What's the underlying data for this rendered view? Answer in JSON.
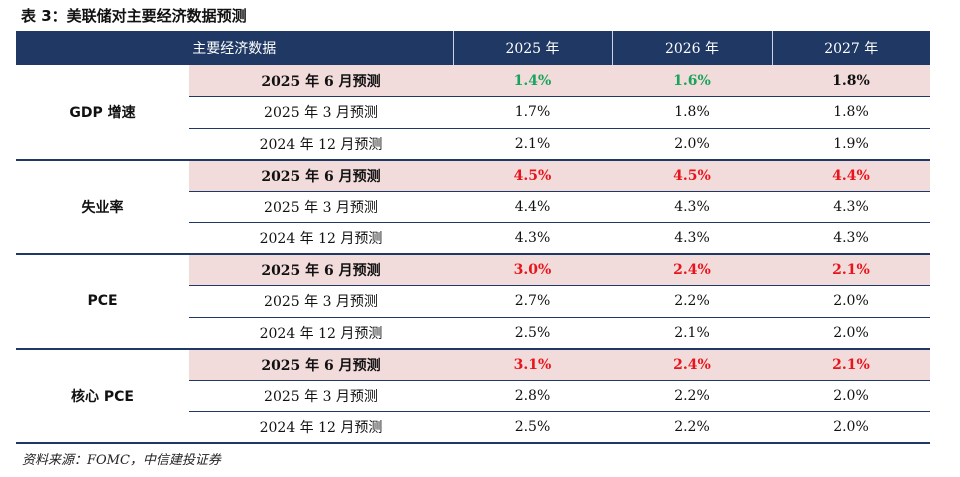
{
  "title": "表 3：美联储对主要经济数据预测",
  "header": {
    "col0": "主要经济数据",
    "col1": "2025 年",
    "col2": "2026 年",
    "col3": "2027 年"
  },
  "colors": {
    "header_bg": "#1f3864",
    "highlight_bg": "#f2dbdb",
    "green": "#1aa35b",
    "red": "#e8141b"
  },
  "groups": [
    {
      "name": "GDP 增速",
      "rows": [
        {
          "label": "2025 年 6 月预测",
          "v": [
            "1.4%",
            "1.6%",
            "1.8%"
          ],
          "colors": [
            "green",
            "green",
            "black"
          ]
        },
        {
          "label": "2025 年 3 月预测",
          "v": [
            "1.7%",
            "1.8%",
            "1.8%"
          ]
        },
        {
          "label": "2024 年 12 月预测",
          "v": [
            "2.1%",
            "2.0%",
            "1.9%"
          ]
        }
      ]
    },
    {
      "name": "失业率",
      "rows": [
        {
          "label": "2025 年 6 月预测",
          "v": [
            "4.5%",
            "4.5%",
            "4.4%"
          ],
          "colors": [
            "red",
            "red",
            "red"
          ]
        },
        {
          "label": "2025 年 3 月预测",
          "v": [
            "4.4%",
            "4.3%",
            "4.3%"
          ]
        },
        {
          "label": "2024 年 12 月预测",
          "v": [
            "4.3%",
            "4.3%",
            "4.3%"
          ]
        }
      ]
    },
    {
      "name": "PCE",
      "rows": [
        {
          "label": "2025 年 6 月预测",
          "v": [
            "3.0%",
            "2.4%",
            "2.1%"
          ],
          "colors": [
            "red",
            "red",
            "red"
          ]
        },
        {
          "label": "2025 年 3 月预测",
          "v": [
            "2.7%",
            "2.2%",
            "2.0%"
          ]
        },
        {
          "label": "2024 年 12 月预测",
          "v": [
            "2.5%",
            "2.1%",
            "2.0%"
          ]
        }
      ]
    },
    {
      "name": "核心 PCE",
      "rows": [
        {
          "label": "2025 年 6 月预测",
          "v": [
            "3.1%",
            "2.4%",
            "2.1%"
          ],
          "colors": [
            "red",
            "red",
            "red"
          ]
        },
        {
          "label": "2025 年 3 月预测",
          "v": [
            "2.8%",
            "2.2%",
            "2.0%"
          ]
        },
        {
          "label": "2024 年 12 月预测",
          "v": [
            "2.5%",
            "2.2%",
            "2.0%"
          ]
        }
      ]
    }
  ],
  "source": "资料来源：FOMC，中信建投证券"
}
